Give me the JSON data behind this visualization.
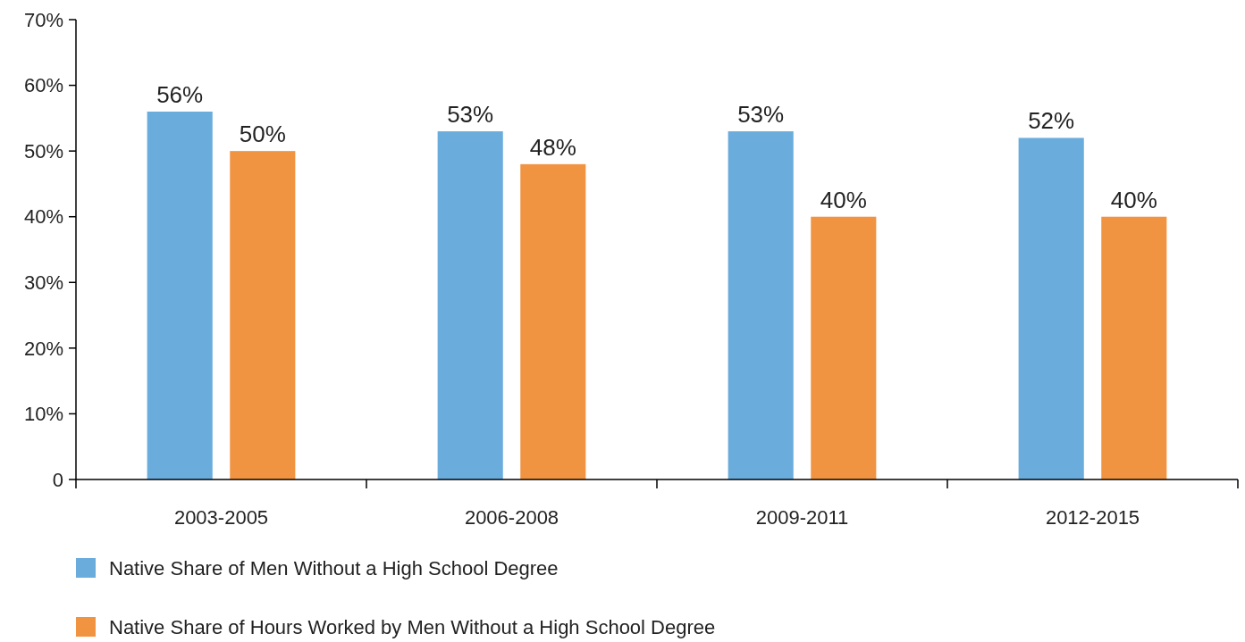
{
  "chart_data": {
    "type": "bar",
    "categories": [
      "2003-2005",
      "2006-2008",
      "2009-2011",
      "2012-2015"
    ],
    "series": [
      {
        "name": "Native Share of Men Without a High School Degree",
        "color": "#6aacdc",
        "values": [
          56,
          53,
          53,
          52
        ],
        "value_labels": [
          "56%",
          "53%",
          "53%",
          "52%"
        ]
      },
      {
        "name": "Native Share of Hours Worked by Men Without a High School Degree",
        "color": "#f19442",
        "values": [
          50,
          48,
          40,
          40
        ],
        "value_labels": [
          "50%",
          "48%",
          "40%",
          "40%"
        ]
      }
    ],
    "ylim": [
      0,
      70
    ],
    "yticks": [
      {
        "value": 0,
        "label": "0"
      },
      {
        "value": 10,
        "label": "10%"
      },
      {
        "value": 20,
        "label": "20%"
      },
      {
        "value": 30,
        "label": "30%"
      },
      {
        "value": 40,
        "label": "40%"
      },
      {
        "value": 50,
        "label": "50%"
      },
      {
        "value": 60,
        "label": "60%"
      },
      {
        "value": 70,
        "label": "70%"
      }
    ],
    "grid": false,
    "legend": "bottom"
  }
}
